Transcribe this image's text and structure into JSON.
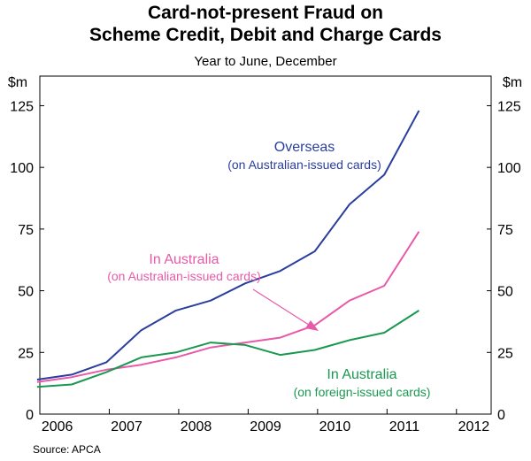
{
  "chart_data": {
    "type": "line",
    "title_line1": "Card-not-present Fraud on",
    "title_line2": "Scheme Credit, Debit and Charge Cards",
    "subtitle": "Year to June, December",
    "y_unit_left": "$m",
    "y_unit_right": "$m",
    "source": "Source: APCA",
    "xlim": [
      2006,
      2012.5
    ],
    "ylim": [
      0,
      137
    ],
    "y_ticks": [
      0,
      25,
      50,
      75,
      100,
      125
    ],
    "x_tick_labels": [
      "2006",
      "2007",
      "2008",
      "2009",
      "2010",
      "2011",
      "2012"
    ],
    "x_tick_centers": [
      2006.25,
      2007.25,
      2008.25,
      2009.25,
      2010.25,
      2011.25,
      2012.25
    ],
    "grid": false,
    "x": [
      2005.96,
      2006.46,
      2006.96,
      2007.46,
      2007.96,
      2008.46,
      2008.96,
      2009.46,
      2009.96,
      2010.46,
      2010.96,
      2011.46
    ],
    "series": [
      {
        "name": "Overseas (on Australian-issued cards)",
        "label_line1": "Overseas",
        "label_line2": "(on Australian-issued cards)",
        "color": "#2a3e9e",
        "values": [
          14,
          16,
          21,
          34,
          42,
          46,
          53,
          58,
          66,
          85,
          97,
          123
        ]
      },
      {
        "name": "In Australia (on Australian-issued cards)",
        "label_line1": "In Australia",
        "label_line2": "(on Australian-issued cards)",
        "color": "#e85aa8",
        "values": [
          13,
          15,
          18,
          20,
          23,
          27,
          29,
          31,
          36,
          46,
          52,
          74
        ]
      },
      {
        "name": "In Australia (on foreign-issued cards)",
        "label_line1": "In Australia",
        "label_line2": "(on foreign-issued cards)",
        "color": "#1a9850",
        "values": [
          11,
          12,
          17,
          23,
          25,
          29,
          28,
          24,
          26,
          30,
          33,
          42
        ]
      }
    ]
  }
}
